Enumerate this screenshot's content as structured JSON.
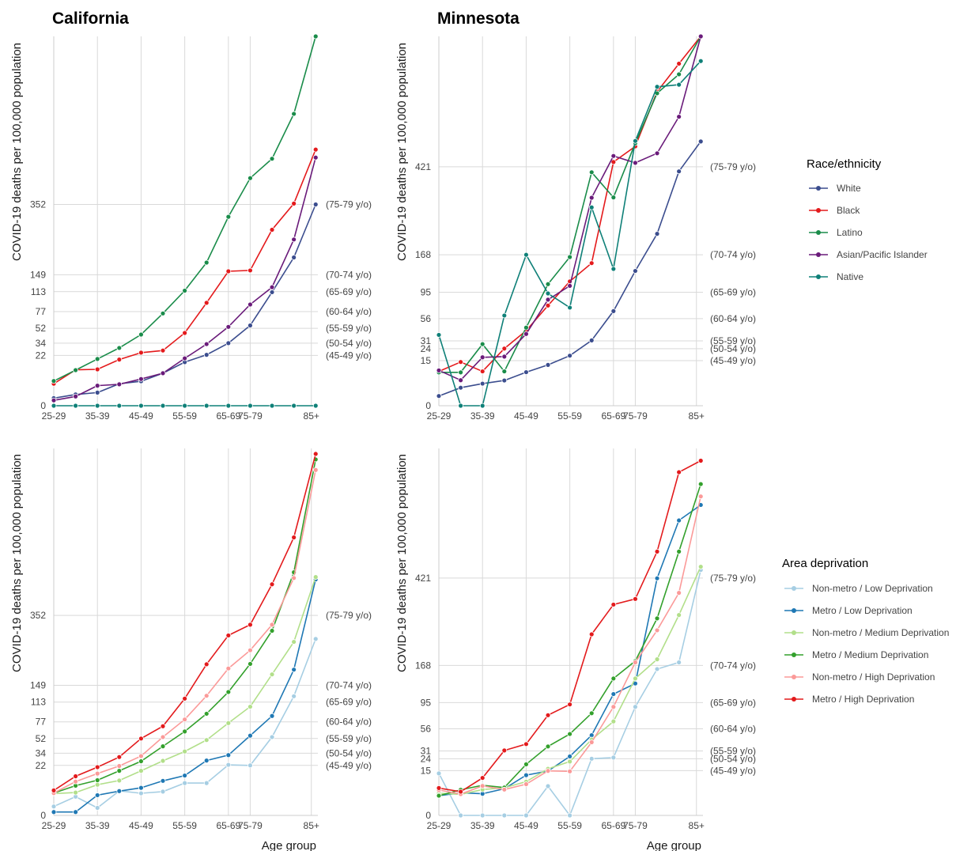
{
  "y_axis_label": "COVID-19 deaths per 100,000 population",
  "x_axis_label": "Age group",
  "legends": [
    {
      "title": "Race/ethnicity",
      "items": [
        {
          "name": "White",
          "color": "#3b4d8e"
        },
        {
          "name": "Black",
          "color": "#e41a1c"
        },
        {
          "name": "Latino",
          "color": "#1a8c4a"
        },
        {
          "name": "Asian/Pacific Islander",
          "color": "#6a1b7a"
        },
        {
          "name": "Native",
          "color": "#0f8078"
        }
      ]
    },
    {
      "title": "Area deprivation",
      "items": [
        {
          "name": "Non-metro / Low Deprivation",
          "color": "#a6cee3"
        },
        {
          "name": "Metro / Low Deprivation",
          "color": "#1f78b4"
        },
        {
          "name": "Non-metro / Medium Deprivation",
          "color": "#b2df8a"
        },
        {
          "name": "Metro / Medium Deprivation",
          "color": "#33a02c"
        },
        {
          "name": "Non-metro / High Deprivation",
          "color": "#fb9a99"
        },
        {
          "name": "Metro / High Deprivation",
          "color": "#e31a1c"
        }
      ]
    }
  ],
  "chart_data": [
    {
      "type": "line",
      "title": "California",
      "legend": 0,
      "x": [
        1,
        2,
        3,
        4,
        5,
        6,
        7,
        8,
        9,
        10,
        11,
        12,
        13
      ],
      "x_ticks": [
        {
          "x": 1,
          "label": "25-29"
        },
        {
          "x": 3,
          "label": "35-39"
        },
        {
          "x": 5,
          "label": "45-49"
        },
        {
          "x": 7,
          "label": "55-59"
        },
        {
          "x": 9,
          "label": "65-69"
        },
        {
          "x": 10,
          "label": "75-79"
        },
        {
          "x": 12.8,
          "label": "85+"
        }
      ],
      "xlim": [
        1,
        13.1
      ],
      "ylim": [
        0,
        1185
      ],
      "y_scale": "sqrt",
      "y_ticks": [
        0,
        22,
        34,
        52,
        77,
        113,
        149,
        352
      ],
      "annotations": [
        {
          "value": 352,
          "label": "(75-79 y/o)"
        },
        {
          "value": 149,
          "label": "(70-74 y/o)"
        },
        {
          "value": 113,
          "label": "(65-69 y/o)"
        },
        {
          "value": 77,
          "label": "(60-64 y/o)"
        },
        {
          "value": 52,
          "label": "(55-59 y/o)"
        },
        {
          "value": 34,
          "label": "(50-54 y/o)"
        },
        {
          "value": 22,
          "label": "(45-49 y/o)"
        }
      ],
      "series": [
        {
          "name": "White",
          "values": [
            0.5,
            1.1,
            1.5,
            4.2,
            5.2,
            9.2,
            16.5,
            22.5,
            34,
            56,
            112,
            191,
            352
          ]
        },
        {
          "name": "Black",
          "values": [
            4.2,
            11.2,
            11.5,
            18.5,
            24.5,
            26.5,
            46,
            92,
            157,
            159,
            269,
            355,
            570
          ]
        },
        {
          "name": "Latino",
          "values": [
            5.3,
            11,
            19,
            29,
            44,
            74,
            115,
            178,
            310,
            450,
            530,
            740,
            1185
          ]
        },
        {
          "name": "Asian/Pacific Islander",
          "values": [
            0.25,
            0.75,
            3.5,
            4,
            6.2,
            9.2,
            19.5,
            33,
            54,
            89,
            122,
            240,
            535
          ]
        },
        {
          "name": "Native",
          "values": [
            0,
            0,
            0,
            0,
            0,
            0,
            0,
            0,
            0,
            0,
            0,
            0,
            0
          ]
        }
      ]
    },
    {
      "type": "line",
      "title": "Minnesota",
      "legend": 0,
      "x": [
        1,
        2,
        3,
        4,
        5,
        6,
        7,
        8,
        9,
        10,
        11,
        12,
        13
      ],
      "x_ticks": [
        {
          "x": 1,
          "label": "25-29"
        },
        {
          "x": 3,
          "label": "35-39"
        },
        {
          "x": 5,
          "label": "45-49"
        },
        {
          "x": 7,
          "label": "55-59"
        },
        {
          "x": 9,
          "label": "65-69"
        },
        {
          "x": 10,
          "label": "75-79"
        },
        {
          "x": 12.8,
          "label": "85+"
        }
      ],
      "xlim": [
        1,
        13.1
      ],
      "ylim": [
        0,
        1006
      ],
      "y_scale": "sqrt",
      "y_ticks": [
        0,
        15,
        24,
        31,
        56,
        95,
        168,
        421
      ],
      "annotations": [
        {
          "value": 421,
          "label": "(75-79 y/o)"
        },
        {
          "value": 168,
          "label": "(70-74 y/o)"
        },
        {
          "value": 95,
          "label": "(65-69 y/o)"
        },
        {
          "value": 56,
          "label": "(60-64 y/o)"
        },
        {
          "value": 31,
          "label": "(55-59 y/o)"
        },
        {
          "value": 24,
          "label": "(50-54 y/o)"
        },
        {
          "value": 15,
          "label": "(45-49 y/o)"
        }
      ],
      "series": [
        {
          "name": "White",
          "values": [
            0.7,
            2.4,
            3.6,
            4.7,
            8.3,
            12.3,
            18.5,
            31.5,
            66,
            134,
            218,
            405,
            515
          ]
        },
        {
          "name": "Black",
          "values": [
            8.7,
            14.1,
            8.7,
            24.1,
            41.5,
            74,
            114,
            150,
            438,
            496,
            727,
            863,
            1006
          ]
        },
        {
          "name": "Latino",
          "values": [
            8.2,
            8.2,
            28,
            8.7,
            45,
            109,
            163,
            402,
            320,
            508,
            720,
            810,
            1006
          ]
        },
        {
          "name": "Asian/Pacific Islander",
          "values": [
            9.2,
            4.8,
            17.3,
            17.8,
            38,
            83,
            106,
            319,
            460,
            435,
            470,
            616,
            1006
          ]
        },
        {
          "name": "Native",
          "values": [
            37,
            0,
            0,
            60,
            168,
            93,
            71,
            290,
            138,
            517,
            750,
            760,
            876
          ]
        }
      ]
    },
    {
      "type": "line",
      "title": "",
      "legend": 1,
      "x": [
        1,
        2,
        3,
        4,
        5,
        6,
        7,
        8,
        9,
        10,
        11,
        12,
        13
      ],
      "x_ticks": [
        {
          "x": 1,
          "label": "25-29"
        },
        {
          "x": 3,
          "label": "35-39"
        },
        {
          "x": 5,
          "label": "45-49"
        },
        {
          "x": 7,
          "label": "55-59"
        },
        {
          "x": 9,
          "label": "65-69"
        },
        {
          "x": 10,
          "label": "75-79"
        },
        {
          "x": 12.8,
          "label": "85+"
        }
      ],
      "xlim": [
        1,
        13.1
      ],
      "ylim": [
        0,
        1185
      ],
      "y_scale": "sqrt",
      "y_ticks": [
        0,
        22,
        34,
        52,
        77,
        113,
        149,
        352
      ],
      "annotations": [
        {
          "value": 352,
          "label": "(75-79 y/o)"
        },
        {
          "value": 149,
          "label": "(70-74 y/o)"
        },
        {
          "value": 113,
          "label": "(65-69 y/o)"
        },
        {
          "value": 77,
          "label": "(60-64 y/o)"
        },
        {
          "value": 52,
          "label": "(55-59 y/o)"
        },
        {
          "value": 34,
          "label": "(50-54 y/o)"
        },
        {
          "value": 22,
          "label": "(45-49 y/o)"
        }
      ],
      "series": [
        {
          "name": "Non-metro / Low Deprivation",
          "values": [
            0.7,
            3.1,
            0.5,
            5.3,
            4.3,
            5.0,
            9.2,
            9.2,
            22.5,
            22.0,
            54,
            125,
            274
          ]
        },
        {
          "name": "Metro / Low Deprivation",
          "values": [
            0.1,
            0.1,
            3.6,
            5.2,
            6.7,
            10.5,
            14.0,
            26.5,
            32,
            56,
            87,
            187,
            490
          ]
        },
        {
          "name": "Non-metro / Medium Deprivation",
          "values": [
            4.2,
            4.6,
            8.3,
            10.7,
            17.5,
            26.2,
            36,
            50,
            75,
            104,
            175,
            265,
            500
          ]
        },
        {
          "name": "Metro / Medium Deprivation",
          "values": [
            4.4,
            7.8,
            10.9,
            17.5,
            25.8,
            42,
            62,
            91,
            134,
            202,
            300,
            520,
            1115
          ]
        },
        {
          "name": "Non-metro / High Deprivation",
          "values": [
            4.4,
            10.1,
            15.4,
            21.5,
            31,
            54,
            81,
            126,
            190,
            240,
            320,
            496,
            1050
          ]
        },
        {
          "name": "Metro / High Deprivation",
          "values": [
            5.5,
            13.5,
            20.5,
            30,
            52,
            70,
            120,
            201,
            285,
            320,
            470,
            680,
            1150
          ]
        }
      ]
    },
    {
      "type": "line",
      "title": "",
      "legend": 1,
      "x": [
        1,
        2,
        3,
        4,
        5,
        6,
        7,
        8,
        9,
        10,
        11,
        12,
        13
      ],
      "x_ticks": [
        {
          "x": 1,
          "label": "25-29"
        },
        {
          "x": 3,
          "label": "35-39"
        },
        {
          "x": 5,
          "label": "45-49"
        },
        {
          "x": 7,
          "label": "55-59"
        },
        {
          "x": 9,
          "label": "65-69"
        },
        {
          "x": 10,
          "label": "75-79"
        },
        {
          "x": 12.8,
          "label": "85+"
        }
      ],
      "xlim": [
        1,
        13.1
      ],
      "ylim": [
        0,
        1006
      ],
      "y_scale": "sqrt",
      "y_ticks": [
        0,
        15,
        24,
        31,
        56,
        95,
        168,
        421
      ],
      "annotations": [
        {
          "value": 421,
          "label": "(75-79 y/o)"
        },
        {
          "value": 168,
          "label": "(70-74 y/o)"
        },
        {
          "value": 95,
          "label": "(65-69 y/o)"
        },
        {
          "value": 56,
          "label": "(60-64 y/o)"
        },
        {
          "value": 31,
          "label": "(55-59 y/o)"
        },
        {
          "value": 24,
          "label": "(50-54 y/o)"
        },
        {
          "value": 15,
          "label": "(45-49 y/o)"
        }
      ],
      "series": [
        {
          "name": "Non-metro / Low Deprivation",
          "values": [
            13.2,
            0,
            0,
            0,
            0,
            6.4,
            0,
            24,
            25,
            88,
            160,
            175,
            450
          ]
        },
        {
          "name": "Metro / Low Deprivation",
          "values": [
            2.9,
            3.8,
            3.5,
            5.3,
            12.1,
            14.7,
            26,
            48,
            110,
            130,
            420,
            650,
            720
          ]
        },
        {
          "name": "Non-metro / Medium Deprivation",
          "values": [
            3.7,
            3.3,
            5.0,
            5.7,
            8.5,
            16.2,
            21.7,
            43,
            66,
            140,
            182,
            300,
            462
          ]
        },
        {
          "name": "Metro / Medium Deprivation",
          "values": [
            2.9,
            4.9,
            6.8,
            5.8,
            19.5,
            35.5,
            49.5,
            78,
            140,
            178,
            290,
            520,
            820
          ]
        },
        {
          "name": "Non-metro / High Deprivation",
          "values": [
            4.8,
            3.4,
            6.5,
            5.0,
            7.3,
            14.8,
            14.5,
            40,
            88,
            175,
            256,
            370,
            760
          ]
        },
        {
          "name": "Metro / High Deprivation",
          "values": [
            5.6,
            4.2,
            10.5,
            31.5,
            38,
            75,
            92,
            245,
            332,
            350,
            520,
            880,
            940
          ]
        }
      ]
    }
  ]
}
